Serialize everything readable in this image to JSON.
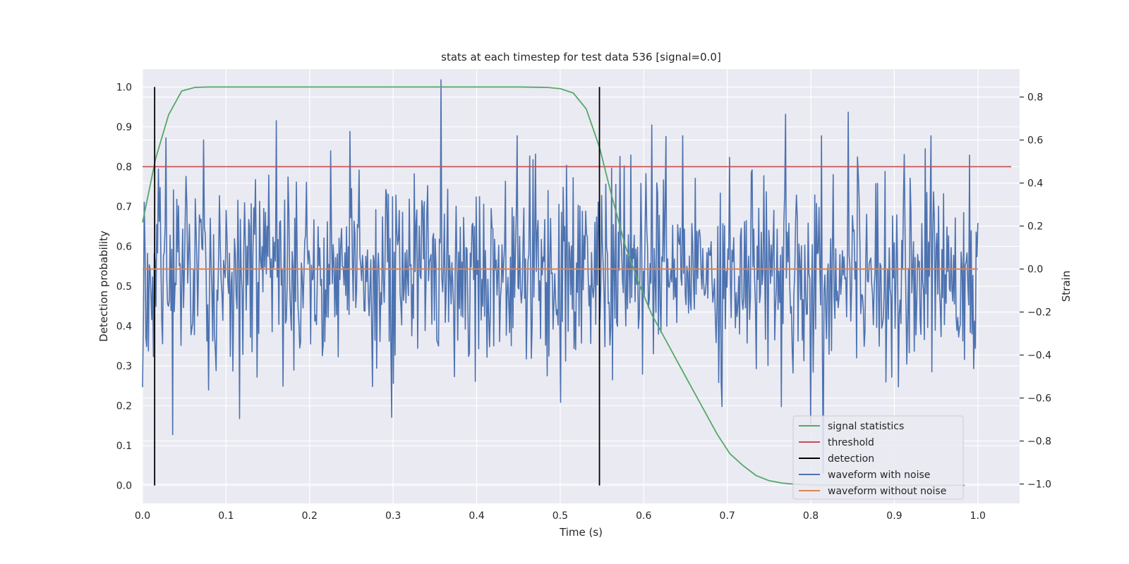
{
  "chart_data": {
    "type": "line",
    "title": "stats at each timestep for test data 536 [signal=0.0]",
    "xlabel": "Time (s)",
    "ylabel_left": "Detection probability",
    "ylabel_right": "Strain",
    "xlim": [
      0.0,
      1.05
    ],
    "ylim_left": [
      -0.045,
      1.045
    ],
    "ylim_right": [
      -1.09,
      0.93
    ],
    "xticks": [
      "0.0",
      "0.1",
      "0.2",
      "0.3",
      "0.4",
      "0.5",
      "0.6",
      "0.7",
      "0.8",
      "0.9",
      "1.0"
    ],
    "yticks_left": [
      "0.0",
      "0.1",
      "0.2",
      "0.3",
      "0.4",
      "0.5",
      "0.6",
      "0.7",
      "0.8",
      "0.9",
      "1.0"
    ],
    "yticks_right": [
      "−1.0",
      "−0.8",
      "−0.6",
      "−0.4",
      "−0.2",
      "0.0",
      "0.2",
      "0.4",
      "0.6",
      "0.8"
    ],
    "grid": true,
    "legend_position": "lower-right",
    "colors": {
      "signal_statistics": "#55a868",
      "threshold": "#c44e52",
      "detection": "#000000",
      "waveform_with_noise": "#4c72b0",
      "waveform_without_noise": "#dd8452",
      "background": "#eaeaf2",
      "grid": "#ffffff"
    },
    "series": [
      {
        "name": "signal statistics",
        "axis": "left",
        "x": [
          0.0,
          0.0156,
          0.0312,
          0.0469,
          0.0625,
          0.0781,
          0.0938,
          0.1,
          0.2,
          0.3,
          0.4,
          0.45,
          0.4844,
          0.5,
          0.5156,
          0.5312,
          0.5469,
          0.5625,
          0.5781,
          0.5938,
          0.6094,
          0.625,
          0.6406,
          0.6562,
          0.6719,
          0.6875,
          0.7031,
          0.7188,
          0.7344,
          0.75,
          0.7656,
          0.7812,
          0.7969,
          0.8125,
          0.8281,
          0.8438,
          0.8594,
          0.875,
          0.9,
          0.95,
          0.9844
        ],
        "values": [
          0.66,
          0.82,
          0.93,
          0.99,
          0.999,
          1.0,
          1.0,
          1.0,
          1.0,
          1.0,
          1.0,
          1.0,
          0.999,
          0.996,
          0.985,
          0.945,
          0.85,
          0.72,
          0.6,
          0.51,
          0.43,
          0.37,
          0.31,
          0.25,
          0.19,
          0.13,
          0.08,
          0.05,
          0.025,
          0.012,
          0.006,
          0.003,
          0.0015,
          0.001,
          0.0008,
          0.0006,
          0.0005,
          0.0004,
          0.0004,
          0.0003,
          0.0003
        ]
      },
      {
        "name": "threshold",
        "axis": "left",
        "x": [
          0.0,
          1.04
        ],
        "values": [
          0.8,
          0.8
        ]
      },
      {
        "name": "detection",
        "axis": "left",
        "segments": [
          {
            "x": 0.0145,
            "y0": 0.0,
            "y1": 1.0
          },
          {
            "x": 0.547,
            "y0": 0.0,
            "y1": 1.0
          }
        ]
      },
      {
        "name": "waveform with noise",
        "axis": "right",
        "x_range": [
          0.0,
          1.0
        ],
        "count": 1000,
        "values_description_estimated": "Gaussian-like noise, std ~0.26, range about -0.95 to 0.88",
        "highlight_points": [
          {
            "x": 0.0,
            "y": -0.55
          },
          {
            "x": 0.036,
            "y": -0.77
          },
          {
            "x": 0.16,
            "y": 0.69
          },
          {
            "x": 0.248,
            "y": 0.64
          },
          {
            "x": 0.298,
            "y": -0.69
          },
          {
            "x": 0.357,
            "y": 0.88
          },
          {
            "x": 0.5,
            "y": -0.62
          },
          {
            "x": 0.61,
            "y": 0.67
          },
          {
            "x": 0.765,
            "y": -0.64
          },
          {
            "x": 0.77,
            "y": 0.72
          },
          {
            "x": 0.8,
            "y": -0.72
          },
          {
            "x": 0.815,
            "y": -0.95
          },
          {
            "x": 0.845,
            "y": 0.73
          },
          {
            "x": 0.99,
            "y": 0.53
          }
        ]
      },
      {
        "name": "waveform without noise",
        "axis": "right",
        "x": [
          0.0,
          1.0
        ],
        "values": [
          0.0,
          0.0
        ]
      }
    ],
    "legend": [
      {
        "label": "signal statistics",
        "color": "#55a868"
      },
      {
        "label": "threshold",
        "color": "#c44e52"
      },
      {
        "label": "detection",
        "color": "#000000"
      },
      {
        "label": "waveform with noise",
        "color": "#4c72b0"
      },
      {
        "label": "waveform without noise",
        "color": "#dd8452"
      }
    ]
  }
}
